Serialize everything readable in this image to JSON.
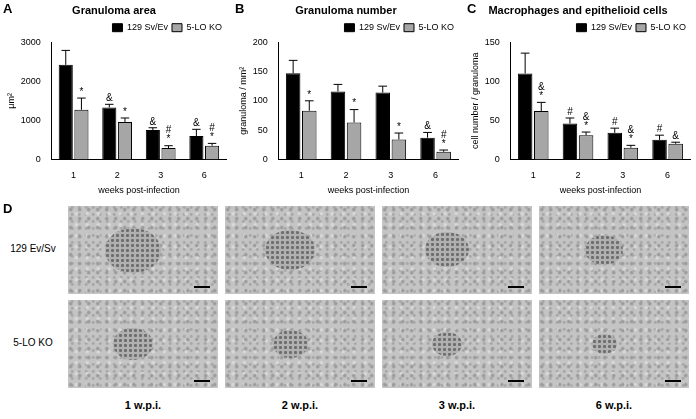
{
  "chart_data": [
    {
      "type": "bar",
      "panel_label": "A",
      "title": "Granuloma area",
      "x_label": "weeks post-infection",
      "y_label": "μm²",
      "categories": [
        "1",
        "2",
        "3",
        "6"
      ],
      "series": [
        {
          "name": "129 Sv/Ev",
          "color": "#000000",
          "values": [
            2420,
            1330,
            750,
            600
          ],
          "errors": [
            370,
            80,
            60,
            170
          ],
          "symbols": [
            [],
            [
              "&"
            ],
            [
              "&"
            ],
            [
              "&"
            ]
          ]
        },
        {
          "name": "5-LO KO",
          "color": "#a6a6a6",
          "values": [
            1270,
            960,
            290,
            350
          ],
          "errors": [
            300,
            100,
            60,
            60
          ],
          "symbols": [
            [
              "*"
            ],
            [
              "*"
            ],
            [
              "#",
              "*"
            ],
            [
              "#",
              "*"
            ]
          ]
        }
      ],
      "ylim": [
        0,
        3000
      ],
      "yticks": [
        0,
        1000,
        2000,
        3000
      ],
      "grid": false,
      "legend": "upper right"
    },
    {
      "type": "bar",
      "panel_label": "B",
      "title": "Granuloma number",
      "x_label": "weeks post-infection",
      "y_label": "granuloma / mm²",
      "categories": [
        "1",
        "2",
        "3",
        "6"
      ],
      "series": [
        {
          "name": "129 Sv/Ev",
          "color": "#000000",
          "values": [
            147,
            116,
            114,
            37
          ],
          "errors": [
            22,
            12,
            11,
            9
          ],
          "symbols": [
            [],
            [],
            [],
            [
              "&"
            ]
          ]
        },
        {
          "name": "5-LO KO",
          "color": "#a6a6a6",
          "values": [
            83,
            63,
            34,
            13
          ],
          "errors": [
            17,
            22,
            11,
            3
          ],
          "symbols": [
            [
              "*"
            ],
            [
              "*"
            ],
            [
              "*"
            ],
            [
              "#",
              "*"
            ]
          ]
        }
      ],
      "ylim": [
        0,
        200
      ],
      "yticks": [
        0,
        50,
        100,
        150,
        200
      ],
      "grid": false,
      "legend": "upper right"
    },
    {
      "type": "bar",
      "panel_label": "C",
      "title": "Macrophages and epithelioid cells",
      "x_label": "weeks post-infection",
      "y_label": "cell number / granuloma",
      "categories": [
        "1",
        "2",
        "3",
        "6"
      ],
      "series": [
        {
          "name": "129 Sv/Ev",
          "color": "#000000",
          "values": [
            110,
            46,
            34,
            25
          ],
          "errors": [
            26,
            7,
            6,
            6
          ],
          "symbols": [
            [],
            [
              "#"
            ],
            [
              "#"
            ],
            [
              "#"
            ]
          ]
        },
        {
          "name": "5-LO KO",
          "color": "#a6a6a6",
          "values": [
            62,
            31,
            15,
            20
          ],
          "errors": [
            11,
            4,
            3,
            2
          ],
          "symbols": [
            [
              "&",
              "*"
            ],
            [
              "&",
              "*"
            ],
            [
              "&",
              "*"
            ],
            [
              "&"
            ]
          ]
        }
      ],
      "ylim": [
        0,
        150
      ],
      "yticks": [
        0,
        50,
        100,
        150
      ],
      "grid": false,
      "legend": "upper right"
    }
  ],
  "panel_d": {
    "panel_label": "D",
    "row_labels": [
      "129 Ev/Sv",
      "5-LO KO"
    ],
    "column_labels": [
      "1 w.p.i.",
      "2 w.p.i.",
      "3 w.p.i.",
      "6 w.p.i."
    ]
  }
}
